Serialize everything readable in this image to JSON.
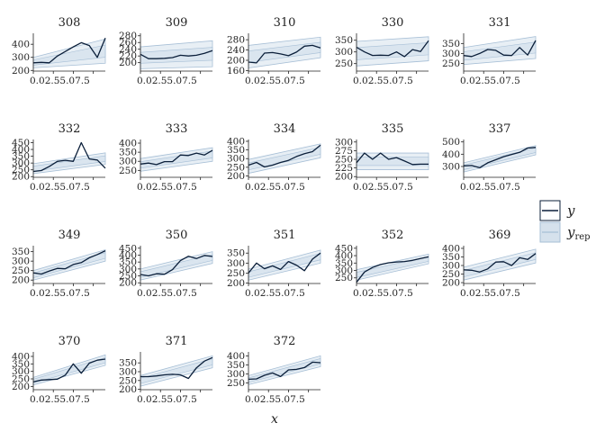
{
  "chart_data": {
    "type": "line",
    "layout": "facet-grid",
    "xlabel": "x",
    "x": [
      0,
      1,
      2,
      3,
      4,
      5,
      6,
      7,
      8,
      9
    ],
    "x_ticks": [
      0.0,
      2.5,
      5.0,
      7.5
    ],
    "x_tick_label_text": "0.02.55.07.5",
    "legend": {
      "position": "right",
      "entries": [
        {
          "key": "y",
          "label": "y",
          "type": "line",
          "color": "#0b1f3a"
        },
        {
          "key": "y_rep",
          "label": "y",
          "subscript": "rep",
          "type": "band",
          "color": "#bcd0e2"
        }
      ]
    },
    "colors": {
      "line": "#0b1f3a",
      "band_fill": "#d5e1ec",
      "band_edge": "#a7bfd6",
      "axis": "#222222"
    },
    "panels": [
      {
        "id": "308",
        "ylim": [
          195,
          470
        ],
        "yticks": [
          200,
          300,
          400
        ],
        "y": [
          258,
          262,
          258,
          310,
          345,
          380,
          412,
          390,
          300,
          448
        ],
        "band": {
          "lo": [
            220,
            255
          ],
          "hi": [
            300,
            440
          ]
        }
      },
      {
        "id": "309",
        "ylim": [
          175,
          282
        ],
        "yticks": [
          200,
          220,
          240,
          260,
          280
        ],
        "y": [
          225,
          212,
          212,
          213,
          215,
          222,
          220,
          222,
          228,
          236
        ],
        "band": {
          "lo": [
            182,
            188
          ],
          "hi": [
            247,
            265
          ]
        }
      },
      {
        "id": "310",
        "ylim": [
          158,
          298
        ],
        "yticks": [
          160,
          200,
          240,
          280
        ],
        "y": [
          193,
          190,
          228,
          230,
          225,
          218,
          232,
          255,
          258,
          248
        ],
        "band": {
          "lo": [
            170,
            210
          ],
          "hi": [
            258,
            290
          ]
        }
      },
      {
        "id": "330",
        "ylim": [
          218,
          372
        ],
        "yticks": [
          250,
          300,
          350
        ],
        "y": [
          320,
          300,
          285,
          286,
          285,
          300,
          280,
          310,
          302,
          348
        ],
        "band": {
          "lo": [
            240,
            262
          ],
          "hi": [
            345,
            365
          ]
        }
      },
      {
        "id": "331",
        "ylim": [
          212,
          392
        ],
        "yticks": [
          250,
          300,
          350
        ],
        "y": [
          290,
          285,
          300,
          320,
          316,
          292,
          290,
          330,
          292,
          365
        ],
        "band": {
          "lo": [
            245,
            275
          ],
          "hi": [
            330,
            385
          ]
        }
      },
      {
        "id": "332",
        "ylim": [
          195,
          460
        ],
        "yticks": [
          200,
          250,
          300,
          350,
          400,
          450
        ],
        "y": [
          238,
          245,
          275,
          312,
          320,
          312,
          450,
          330,
          322,
          262
        ],
        "band": {
          "lo": [
            222,
            290
          ],
          "hi": [
            295,
            375
          ]
        }
      },
      {
        "id": "333",
        "ylim": [
          212,
          410
        ],
        "yticks": [
          250,
          300,
          350,
          400
        ],
        "y": [
          285,
          290,
          282,
          298,
          298,
          335,
          332,
          345,
          335,
          360
        ],
        "band": {
          "lo": [
            245,
            300
          ],
          "hi": [
            315,
            375
          ]
        }
      },
      {
        "id": "334",
        "ylim": [
          192,
          400
        ],
        "yticks": [
          200,
          250,
          300,
          350,
          400
        ],
        "y": [
          262,
          278,
          252,
          262,
          278,
          290,
          312,
          328,
          340,
          378
        ],
        "band": {
          "lo": [
            215,
            305
          ],
          "hi": [
            295,
            385
          ]
        }
      },
      {
        "id": "335",
        "ylim": [
          198,
          302
        ],
        "yticks": [
          200,
          225,
          250,
          275,
          300
        ],
        "y": [
          240,
          268,
          250,
          268,
          250,
          255,
          245,
          235,
          236,
          236
        ],
        "band": {
          "lo": [
            220,
            220
          ],
          "hi": [
            268,
            268
          ]
        }
      },
      {
        "id": "337",
        "ylim": [
          212,
          505
        ],
        "yticks": [
          300,
          400,
          500
        ],
        "y": [
          305,
          308,
          290,
          330,
          355,
          380,
          398,
          415,
          450,
          455
        ],
        "band": {
          "lo": [
            255,
            395
          ],
          "hi": [
            330,
            470
          ]
        }
      },
      {
        "id": "349",
        "ylim": [
          182,
          372
        ],
        "yticks": [
          200,
          250,
          300,
          350
        ],
        "y": [
          238,
          232,
          248,
          262,
          260,
          282,
          292,
          318,
          335,
          355
        ],
        "band": {
          "lo": [
            200,
            300
          ],
          "hi": [
            250,
            360
          ]
        }
      },
      {
        "id": "350",
        "ylim": [
          195,
          455
        ],
        "yticks": [
          200,
          250,
          300,
          350,
          400,
          450
        ],
        "y": [
          260,
          250,
          265,
          262,
          295,
          360,
          392,
          375,
          398,
          390
        ],
        "band": {
          "lo": [
            220,
            340
          ],
          "hi": [
            300,
            425
          ]
        }
      },
      {
        "id": "351",
        "ylim": [
          198,
          378
        ],
        "yticks": [
          200,
          250,
          300,
          350
        ],
        "y": [
          250,
          300,
          272,
          286,
          268,
          308,
          290,
          262,
          320,
          350
        ],
        "band": {
          "lo": [
            215,
            300
          ],
          "hi": [
            270,
            365
          ]
        }
      },
      {
        "id": "352",
        "ylim": [
          212,
          455
        ],
        "yticks": [
          250,
          300,
          350,
          400,
          450
        ],
        "y": [
          220,
          290,
          320,
          340,
          352,
          357,
          360,
          368,
          380,
          392
        ],
        "band": {
          "lo": [
            235,
            345
          ],
          "hi": [
            305,
            410
          ]
        }
      },
      {
        "id": "369",
        "ylim": [
          195,
          405
        ],
        "yticks": [
          200,
          250,
          300,
          350,
          400
        ],
        "y": [
          275,
          272,
          262,
          280,
          320,
          322,
          300,
          345,
          335,
          370
        ],
        "band": {
          "lo": [
            215,
            315
          ],
          "hi": [
            290,
            395
          ]
        }
      },
      {
        "id": "370",
        "ylim": [
          178,
          418
        ],
        "yticks": [
          200,
          250,
          300,
          350,
          400
        ],
        "y": [
          230,
          242,
          245,
          248,
          275,
          350,
          288,
          355,
          375,
          382
        ],
        "band": {
          "lo": [
            210,
            340
          ],
          "hi": [
            260,
            410
          ]
        }
      },
      {
        "id": "371",
        "ylim": [
          198,
          402
        ],
        "yticks": [
          200,
          250,
          300,
          350
        ],
        "y": [
          272,
          272,
          276,
          282,
          285,
          282,
          262,
          322,
          360,
          380
        ],
        "band": {
          "lo": [
            218,
            322
          ],
          "hi": [
            278,
            390
          ]
        }
      },
      {
        "id": "372",
        "ylim": [
          212,
          412
        ],
        "yticks": [
          250,
          300,
          350,
          400
        ],
        "y": [
          270,
          272,
          292,
          305,
          285,
          322,
          325,
          335,
          365,
          362
        ],
        "band": {
          "lo": [
            240,
            340
          ],
          "hi": [
            290,
            400
          ]
        }
      }
    ]
  }
}
